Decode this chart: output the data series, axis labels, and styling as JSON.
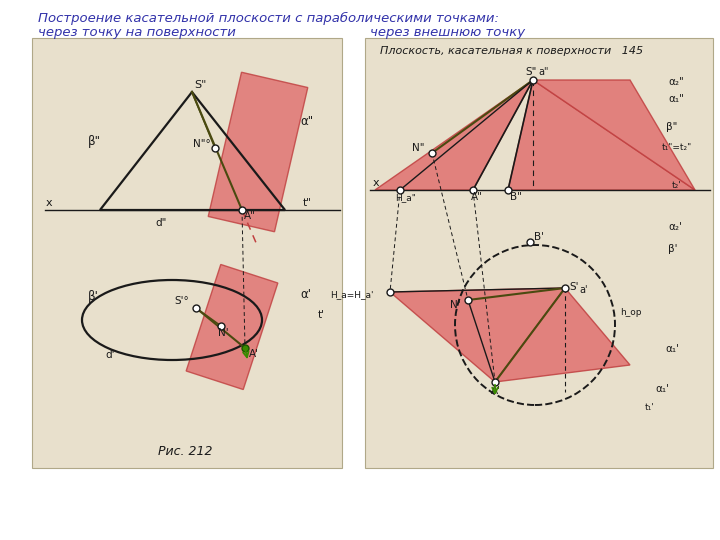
{
  "title_line1": "Построение касательной плоскости с параболическими точками:",
  "title_line2_left": "через точку на поверхности",
  "title_line2_right": "через внешнюю точку",
  "panel_bg": "#e8e0cc",
  "pink": "#e07070",
  "dark_pink": "#c04040",
  "line_color": "#1a1a1a",
  "olive": "#4a4a10",
  "green_pt": "#3a8a00",
  "title_color": "#3333aa",
  "fig_label": "Рис. 212",
  "book_label": "Плоскость, касательная к поверхности   145"
}
